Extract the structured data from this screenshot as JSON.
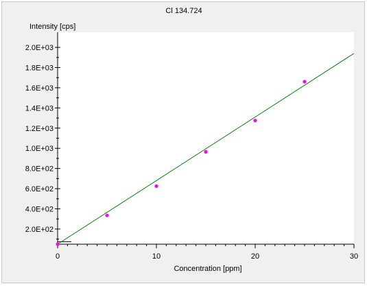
{
  "chart_data": {
    "type": "scatter",
    "title": "Cl 134.724",
    "xlabel": "Concentration [ppm]",
    "ylabel": "Intensity [cps]",
    "xlim": [
      0,
      30
    ],
    "ylim": [
      50,
      2150
    ],
    "x_ticks": [
      "0",
      "10",
      "20",
      "30"
    ],
    "y_ticks": [
      "2.0E+02",
      "4.0E+02",
      "6.0E+02",
      "8.0E+02",
      "1.0E+03",
      "1.2E+03",
      "1.4E+03",
      "1.6E+03",
      "1.8E+03",
      "2.0E+03"
    ],
    "grid": false,
    "series": [
      {
        "type": "scatter",
        "color": "#ff00ff",
        "points": [
          {
            "x": 0,
            "y": 50
          },
          {
            "x": 5,
            "y": 335
          },
          {
            "x": 10,
            "y": 625
          },
          {
            "x": 15,
            "y": 965
          },
          {
            "x": 20,
            "y": 1275
          },
          {
            "x": 25,
            "y": 1660
          }
        ]
      },
      {
        "type": "line",
        "color": "#008000",
        "points": [
          {
            "x": 0,
            "y": 50
          },
          {
            "x": 30,
            "y": 1940
          }
        ]
      }
    ]
  }
}
